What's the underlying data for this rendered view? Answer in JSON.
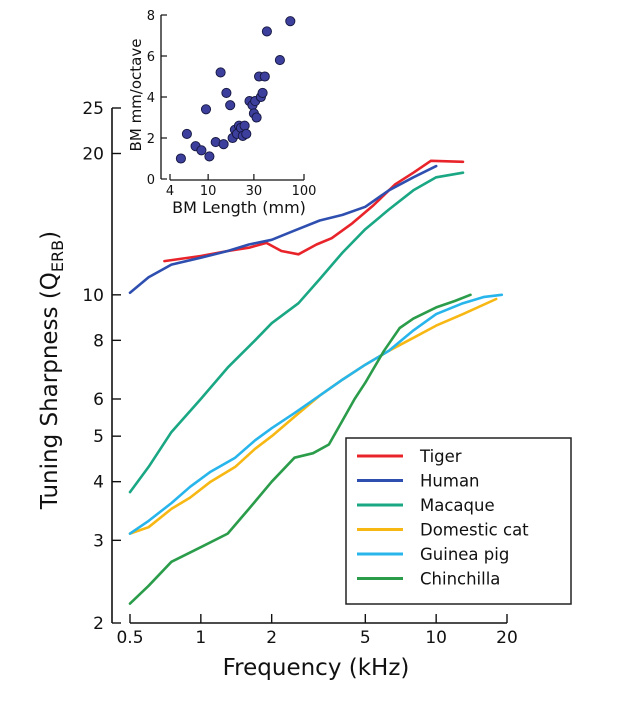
{
  "chart_data": [
    {
      "type": "line",
      "xlabel": "Frequency (kHz)",
      "ylabel_main": "Tuning Sharpness (Q",
      "ylabel_sub": "ERB",
      "ylabel_close": ")",
      "x_scale": "log",
      "y_scale": "log",
      "xlim": [
        0.5,
        20
      ],
      "ylim": [
        2,
        25
      ],
      "x_ticks": [
        0.5,
        1,
        2,
        5,
        10,
        20
      ],
      "x_tick_labels": [
        "0.5",
        "1",
        "2",
        "5",
        "10",
        "20"
      ],
      "y_ticks": [
        2,
        3,
        4,
        5,
        6,
        8,
        10,
        20,
        25
      ],
      "y_tick_labels": [
        "2",
        "3",
        "4",
        "5",
        "6",
        "8",
        "10",
        "20",
        "25"
      ],
      "grid": false,
      "legend_position": "bottom-right",
      "series": [
        {
          "name": "Tiger",
          "color": "#e8242a",
          "x": [
            0.7,
            1.0,
            1.3,
            1.6,
            1.9,
            2.2,
            2.6,
            3.1,
            3.6,
            4.4,
            5.4,
            6.7,
            8.0,
            9.5,
            13.0
          ],
          "y": [
            11.8,
            12.1,
            12.4,
            12.6,
            12.9,
            12.4,
            12.2,
            12.8,
            13.2,
            14.2,
            15.5,
            17.2,
            18.2,
            19.3,
            19.2
          ]
        },
        {
          "name": "Human",
          "color": "#2e4fb0",
          "x": [
            0.5,
            0.6,
            0.75,
            1.0,
            1.3,
            1.6,
            2.0,
            2.5,
            3.2,
            4.0,
            5.0,
            6.3,
            8.0,
            10.0
          ],
          "y": [
            10.1,
            10.9,
            11.6,
            12.0,
            12.4,
            12.8,
            13.1,
            13.7,
            14.4,
            14.8,
            15.4,
            16.7,
            17.8,
            18.8
          ]
        },
        {
          "name": "Macaque",
          "color": "#1aa784",
          "x": [
            0.5,
            0.6,
            0.75,
            1.0,
            1.3,
            1.7,
            2.0,
            2.6,
            3.2,
            4.0,
            5.0,
            6.3,
            8.0,
            10.0,
            13.0
          ],
          "y": [
            3.8,
            4.3,
            5.1,
            6.0,
            7.0,
            8.0,
            8.7,
            9.6,
            10.8,
            12.3,
            13.8,
            15.2,
            16.7,
            17.8,
            18.2
          ]
        },
        {
          "name": "Domestic cat",
          "color": "#f7b813",
          "x": [
            0.5,
            0.6,
            0.75,
            0.9,
            1.1,
            1.4,
            1.7,
            2.0,
            2.5,
            3.2,
            4.0,
            5.0,
            6.3,
            8.0,
            10.0,
            13.0,
            18.0
          ],
          "y": [
            3.1,
            3.2,
            3.5,
            3.7,
            4.0,
            4.3,
            4.7,
            5.0,
            5.5,
            6.1,
            6.6,
            7.1,
            7.6,
            8.1,
            8.6,
            9.1,
            9.8
          ]
        },
        {
          "name": "Guinea pig",
          "color": "#27b5eb",
          "x": [
            0.5,
            0.6,
            0.75,
            0.9,
            1.1,
            1.4,
            1.7,
            2.0,
            2.5,
            3.2,
            4.0,
            5.0,
            6.3,
            8.0,
            10.0,
            13.0,
            16.0,
            19.0
          ],
          "y": [
            3.1,
            3.3,
            3.6,
            3.9,
            4.2,
            4.5,
            4.9,
            5.2,
            5.6,
            6.1,
            6.6,
            7.1,
            7.6,
            8.4,
            9.1,
            9.6,
            9.9,
            10.0
          ]
        },
        {
          "name": "Chinchilla",
          "color": "#2a9c4a",
          "x": [
            0.5,
            0.6,
            0.75,
            1.0,
            1.3,
            1.6,
            2.0,
            2.5,
            3.0,
            3.5,
            4.0,
            4.5,
            5.0,
            6.0,
            7.0,
            8.0,
            10.0,
            12.0,
            14.0
          ],
          "y": [
            2.2,
            2.4,
            2.7,
            2.9,
            3.1,
            3.5,
            4.0,
            4.5,
            4.6,
            4.8,
            5.4,
            6.0,
            6.5,
            7.6,
            8.5,
            8.9,
            9.4,
            9.7,
            10.0
          ]
        }
      ]
    },
    {
      "type": "scatter",
      "xlabel": "BM Length (mm)",
      "ylabel": "BM mm/octave",
      "x_scale": "log",
      "xlim": [
        4,
        100
      ],
      "ylim": [
        0,
        8
      ],
      "x_ticks": [
        4,
        10,
        30,
        100
      ],
      "x_tick_labels": [
        "4",
        "10",
        "30",
        "100"
      ],
      "y_ticks": [
        0,
        2,
        4,
        6,
        8
      ],
      "y_tick_labels": [
        "0",
        "2",
        "4",
        "6",
        "8"
      ],
      "marker_color": "#3d3f9c",
      "points": [
        [
          5.2,
          1.0
        ],
        [
          6.0,
          2.2
        ],
        [
          7.4,
          1.6
        ],
        [
          8.5,
          1.4
        ],
        [
          9.5,
          3.4
        ],
        [
          10.3,
          1.1
        ],
        [
          12.0,
          1.8
        ],
        [
          13.5,
          5.2
        ],
        [
          14.5,
          1.7
        ],
        [
          15.5,
          4.2
        ],
        [
          17.0,
          3.6
        ],
        [
          18.0,
          2.0
        ],
        [
          19.0,
          2.4
        ],
        [
          20.0,
          2.2
        ],
        [
          21.0,
          2.6
        ],
        [
          22.0,
          2.5
        ],
        [
          23.0,
          2.1
        ],
        [
          24.0,
          2.6
        ],
        [
          25.0,
          2.2
        ],
        [
          27.0,
          3.8
        ],
        [
          29.0,
          3.6
        ],
        [
          30.0,
          3.2
        ],
        [
          31.0,
          3.8
        ],
        [
          32.0,
          3.0
        ],
        [
          34.0,
          5.0
        ],
        [
          35.5,
          4.0
        ],
        [
          37.0,
          4.2
        ],
        [
          39.0,
          5.0
        ],
        [
          41.0,
          7.2
        ],
        [
          56.0,
          5.8
        ],
        [
          72.0,
          7.7
        ]
      ]
    }
  ],
  "legend": {
    "entries": [
      {
        "name": "Tiger",
        "color": "#e8242a"
      },
      {
        "name": "Human",
        "color": "#2e4fb0"
      },
      {
        "name": "Macaque",
        "color": "#1aa784"
      },
      {
        "name": "Domestic cat",
        "color": "#f7b813"
      },
      {
        "name": "Guinea pig",
        "color": "#27b5eb"
      },
      {
        "name": "Chinchilla",
        "color": "#2a9c4a"
      }
    ]
  }
}
